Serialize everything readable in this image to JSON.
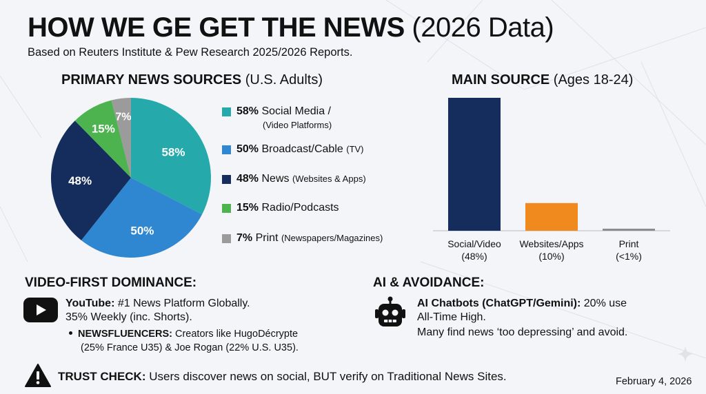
{
  "header": {
    "title_bold": "HOW WE  GE GET THE NEWS",
    "title_light": "(2026 Data)",
    "subtitle": "Based on Reuters Institute & Pew Research 2025/2026 Reports."
  },
  "colors": {
    "social": "#26a9aa",
    "broadcast": "#2e87d0",
    "websites": "#142d5c",
    "radio": "#4db34f",
    "print": "#9b9b9b",
    "bar_social": "#142d5c",
    "bar_websites": "#f08a1f",
    "bar_print": "#8d8d8d"
  },
  "chart_data": [
    {
      "type": "pie",
      "title_bold": "PRIMARY NEWS SOURCES",
      "title_light": "(U.S. Adults)",
      "slices": [
        {
          "label": "58%",
          "value": 58,
          "color_key": "social",
          "legend_pct": "58%",
          "legend_name": "Social Media /",
          "legend_sub": "(Video Platforms)"
        },
        {
          "label": "50%",
          "value": 50,
          "color_key": "broadcast",
          "legend_pct": "50%",
          "legend_name": "Broadcast/Cable",
          "legend_sub": "(TV)"
        },
        {
          "label": "48%",
          "value": 48,
          "color_key": "websites",
          "legend_pct": "48%",
          "legend_name": "News",
          "legend_sub": "(Websites & Apps)"
        },
        {
          "label": "15%",
          "value": 15,
          "color_key": "radio",
          "legend_pct": "15%",
          "legend_name": "Radio/Podcasts",
          "legend_sub": ""
        },
        {
          "label": "7%",
          "value": 7,
          "color_key": "print",
          "legend_pct": "7%",
          "legend_name": "Print",
          "legend_sub": "(Newspapers/Magazines)"
        }
      ]
    },
    {
      "type": "bar",
      "title_bold": "MAIN SOURCE",
      "title_light": "(Ages 18-24)",
      "categories": [
        "Social/Video",
        "Websites/Apps",
        "Print"
      ],
      "category_values_text": [
        "(48%)",
        "(10%)",
        "(<1%)"
      ],
      "values": [
        48,
        10,
        0.6
      ],
      "color_keys": [
        "bar_social",
        "bar_websites",
        "bar_print"
      ],
      "ylim": [
        0,
        48
      ]
    }
  ],
  "video": {
    "heading": "VIDEO-FIRST DOMINANCE:",
    "yt_bold": "YouTube:",
    "yt_rest": "#1 News Platform Globally.",
    "yt_line2": "35% Weekly (inc. Shorts).",
    "bullet_bold": "NEWSFLUENCERS:",
    "bullet_rest": "Creators like HugoDécrypte",
    "bullet_line2": "(25% France U35) & Joe Rogan (22% U.S. U35)."
  },
  "ai": {
    "heading": "AI & AVOIDANCE:",
    "line1_bold": "AI Chatbots (ChatGPT/Gemini):",
    "line1_rest": "20% use",
    "line2": "All-Time High.",
    "line3": "Many find news ‘too depressing’ and avoid."
  },
  "trust": {
    "bold": "TRUST CHECK:",
    "rest": "Users discover news on social, BUT verify on Traditional News Sites."
  },
  "date": "February 4, 2026"
}
